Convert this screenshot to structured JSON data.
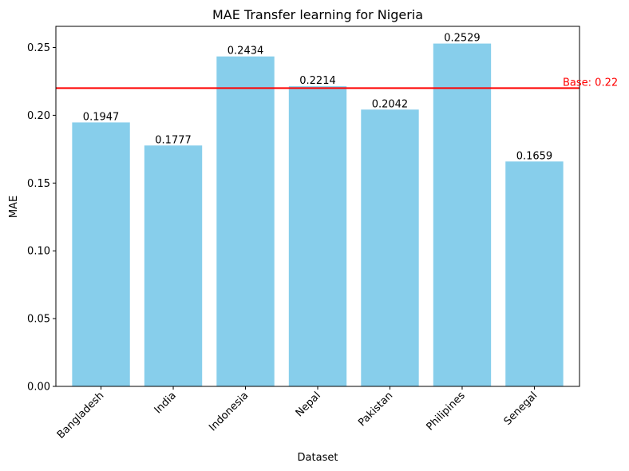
{
  "chart_data": {
    "type": "bar",
    "title": "MAE Transfer learning for Nigeria",
    "xlabel": "Dataset",
    "ylabel": "MAE",
    "categories": [
      "Bangladesh",
      "India",
      "Indonesia",
      "Nepal",
      "Pakistan",
      "Philipines",
      "Senegal"
    ],
    "values": [
      0.1947,
      0.1777,
      0.2434,
      0.2214,
      0.2042,
      0.2529,
      0.1659
    ],
    "value_labels": [
      "0.1947",
      "0.1777",
      "0.2434",
      "0.2214",
      "0.2042",
      "0.2529",
      "0.1659"
    ],
    "ylim": [
      0,
      0.2656
    ],
    "yticks": [
      0,
      0.05,
      0.1,
      0.15,
      0.2,
      0.25
    ],
    "ytick_labels": [
      "0.00",
      "0.05",
      "0.10",
      "0.15",
      "0.20",
      "0.25"
    ],
    "bar_color": "#87ceeb",
    "grid": false,
    "baseline": {
      "value": 0.22,
      "label": "Base: 0.22",
      "color": "#ff0000"
    }
  }
}
